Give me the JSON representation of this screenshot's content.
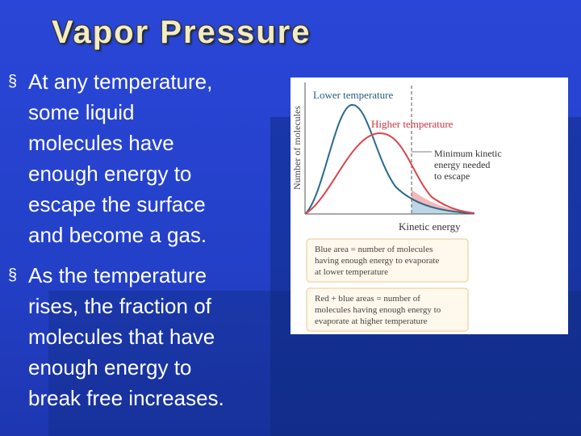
{
  "title": "Vapor Pressure",
  "bullets": [
    {
      "marker": "§",
      "lines": [
        "At any temperature,",
        "some liquid",
        "molecules have",
        "enough energy to",
        "escape the surface",
        "and become a gas."
      ]
    },
    {
      "marker": "§",
      "lines": [
        "As the temperature",
        "rises, the fraction of",
        "molecules that have",
        "enough energy to",
        "break free increases."
      ]
    }
  ],
  "figure": {
    "y_axis_label": "Number of molecules",
    "x_axis_label": "Kinetic energy",
    "curve_labels": [
      "Lower temperature",
      "Higher temperature"
    ],
    "threshold_label": [
      "Minimum kinetic",
      "energy needed",
      "to escape"
    ],
    "captions": [
      [
        "Blue area = number of molecules",
        "having enough energy to evaporate",
        "at lower temperature"
      ],
      [
        "Red + blue areas = number of",
        "molecules having enough energy to",
        "evaporate at higher temperature"
      ]
    ]
  }
}
